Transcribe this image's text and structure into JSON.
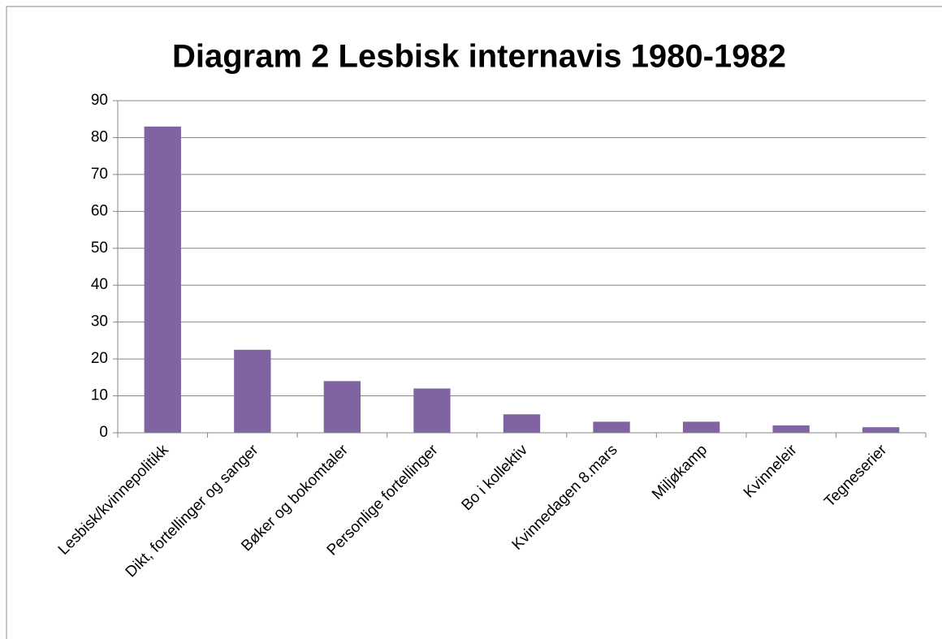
{
  "chart_data": {
    "type": "bar",
    "title": "Diagram 2 Lesbisk internavis 1980-1982",
    "categories": [
      "Lesbisk/kvinnepolitikk",
      "Dikt, fortellinger og sanger",
      "Bøker og bokomtaler",
      "Personlige fortellinger",
      "Bo i kollektiv",
      "Kvinnedagen 8.mars",
      "Miljøkamp",
      "Kvinneleir",
      "Tegneserier"
    ],
    "values": [
      83,
      22.5,
      14,
      12,
      5,
      3,
      3,
      2,
      1.5
    ],
    "color": "#8064a2",
    "ylim": [
      0,
      90
    ],
    "yticks": [
      0,
      10,
      20,
      30,
      40,
      50,
      60,
      70,
      80,
      90
    ],
    "grid": true
  }
}
